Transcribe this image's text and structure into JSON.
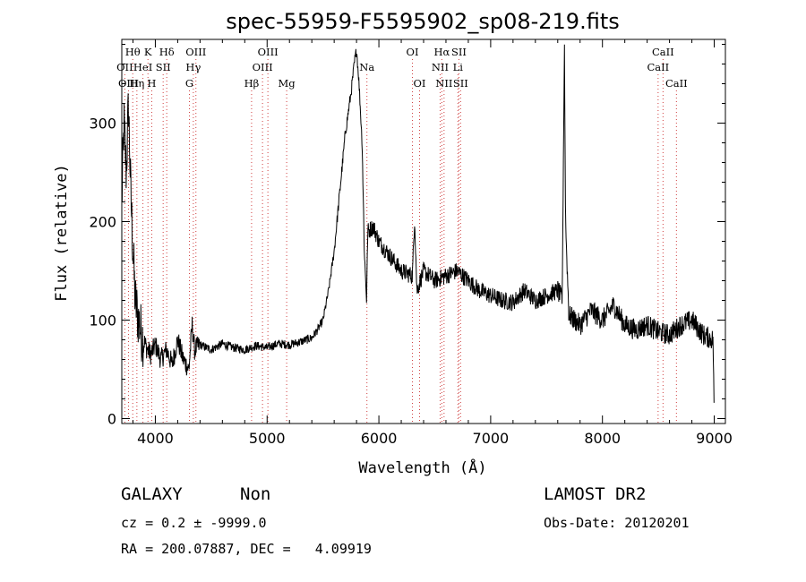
{
  "chart_data": {
    "type": "line",
    "title": "spec-55959-F5595902_sp08-219.fits",
    "xlabel": "Wavelength (Å)",
    "ylabel": "Flux (relative)",
    "xlim": [
      3700,
      9100
    ],
    "ylim": [
      -5,
      385
    ],
    "xticks": [
      4000,
      5000,
      6000,
      7000,
      8000,
      9000
    ],
    "yticks": [
      0,
      100,
      200,
      300
    ],
    "grid": false,
    "legend": "none",
    "colors": {
      "spectrum": "#000000",
      "line_markers": "#d04040"
    },
    "spectrum_anchors": [
      [
        3700,
        220
      ],
      [
        3720,
        300
      ],
      [
        3740,
        250
      ],
      [
        3760,
        320
      ],
      [
        3780,
        230
      ],
      [
        3800,
        170
      ],
      [
        3820,
        120
      ],
      [
        3850,
        100
      ],
      [
        3880,
        85
      ],
      [
        3920,
        72
      ],
      [
        3960,
        65
      ],
      [
        4000,
        75
      ],
      [
        4050,
        60
      ],
      [
        4100,
        70
      ],
      [
        4150,
        55
      ],
      [
        4200,
        80
      ],
      [
        4250,
        60
      ],
      [
        4300,
        50
      ],
      [
        4330,
        95
      ],
      [
        4350,
        70
      ],
      [
        4400,
        75
      ],
      [
        4500,
        70
      ],
      [
        4600,
        76
      ],
      [
        4700,
        72
      ],
      [
        4800,
        70
      ],
      [
        4900,
        74
      ],
      [
        5000,
        72
      ],
      [
        5100,
        76
      ],
      [
        5200,
        75
      ],
      [
        5300,
        78
      ],
      [
        5400,
        82
      ],
      [
        5450,
        90
      ],
      [
        5500,
        100
      ],
      [
        5550,
        130
      ],
      [
        5600,
        170
      ],
      [
        5650,
        230
      ],
      [
        5700,
        290
      ],
      [
        5750,
        330
      ],
      [
        5780,
        360
      ],
      [
        5800,
        375
      ],
      [
        5820,
        345
      ],
      [
        5850,
        280
      ],
      [
        5870,
        170
      ],
      [
        5890,
        120
      ],
      [
        5900,
        190
      ],
      [
        5950,
        195
      ],
      [
        6000,
        180
      ],
      [
        6100,
        165
      ],
      [
        6200,
        150
      ],
      [
        6300,
        145
      ],
      [
        6320,
        205
      ],
      [
        6340,
        130
      ],
      [
        6400,
        150
      ],
      [
        6500,
        140
      ],
      [
        6600,
        145
      ],
      [
        6700,
        150
      ],
      [
        6800,
        140
      ],
      [
        6900,
        130
      ],
      [
        7000,
        125
      ],
      [
        7100,
        120
      ],
      [
        7200,
        118
      ],
      [
        7300,
        130
      ],
      [
        7400,
        120
      ],
      [
        7500,
        125
      ],
      [
        7600,
        130
      ],
      [
        7640,
        120
      ],
      [
        7660,
        380
      ],
      [
        7670,
        200
      ],
      [
        7700,
        105
      ],
      [
        7800,
        95
      ],
      [
        7900,
        110
      ],
      [
        8000,
        100
      ],
      [
        8100,
        115
      ],
      [
        8200,
        95
      ],
      [
        8300,
        90
      ],
      [
        8400,
        95
      ],
      [
        8500,
        88
      ],
      [
        8600,
        85
      ],
      [
        8700,
        95
      ],
      [
        8800,
        100
      ],
      [
        8900,
        85
      ],
      [
        8990,
        80
      ],
      [
        9000,
        0
      ]
    ],
    "spectral_lines": [
      {
        "name": "Hθ",
        "wavelength": 3798,
        "row": 0
      },
      {
        "name": "OII",
        "wavelength": 3727,
        "row": 1
      },
      {
        "name": "OIII",
        "wavelength": 3760,
        "row": 2
      },
      {
        "name": "Hη",
        "wavelength": 3835,
        "row": 2
      },
      {
        "name": "HeI",
        "wavelength": 3889,
        "row": 1
      },
      {
        "name": "K",
        "wavelength": 3934,
        "row": 0
      },
      {
        "name": "H",
        "wavelength": 3968,
        "row": 2
      },
      {
        "name": "SII",
        "wavelength": 4070,
        "row": 1
      },
      {
        "name": "Hδ",
        "wavelength": 4102,
        "row": 0
      },
      {
        "name": "G",
        "wavelength": 4305,
        "row": 2
      },
      {
        "name": "Hγ",
        "wavelength": 4340,
        "row": 1
      },
      {
        "name": "OIII",
        "wavelength": 4363,
        "row": 0
      },
      {
        "name": "Hβ",
        "wavelength": 4861,
        "row": 2
      },
      {
        "name": "OIII",
        "wavelength": 4959,
        "row": 1
      },
      {
        "name": "OIII",
        "wavelength": 5007,
        "row": 0
      },
      {
        "name": "Mg",
        "wavelength": 5175,
        "row": 2
      },
      {
        "name": "Na",
        "wavelength": 5893,
        "row": 1
      },
      {
        "name": "OI",
        "wavelength": 6300,
        "row": 0
      },
      {
        "name": "OI",
        "wavelength": 6364,
        "row": 2
      },
      {
        "name": "NII",
        "wavelength": 6548,
        "row": 1
      },
      {
        "name": "Hα",
        "wavelength": 6563,
        "row": 0
      },
      {
        "name": "NII",
        "wavelength": 6583,
        "row": 2
      },
      {
        "name": "Li",
        "wavelength": 6707,
        "row": 1
      },
      {
        "name": "SII",
        "wavelength": 6716,
        "row": 0
      },
      {
        "name": "SII",
        "wavelength": 6731,
        "row": 2
      },
      {
        "name": "CaII",
        "wavelength": 8498,
        "row": 1
      },
      {
        "name": "CaII",
        "wavelength": 8542,
        "row": 0
      },
      {
        "name": "CaII",
        "wavelength": 8662,
        "row": 2
      }
    ]
  },
  "info": {
    "class": "GALAXY",
    "subclass": "Non",
    "survey": "LAMOST DR2",
    "cz": "cz = 0.2 ± -9999.0",
    "obs_date": "Obs-Date: 20120201",
    "coords": "RA = 200.07887, DEC =   4.09919"
  }
}
